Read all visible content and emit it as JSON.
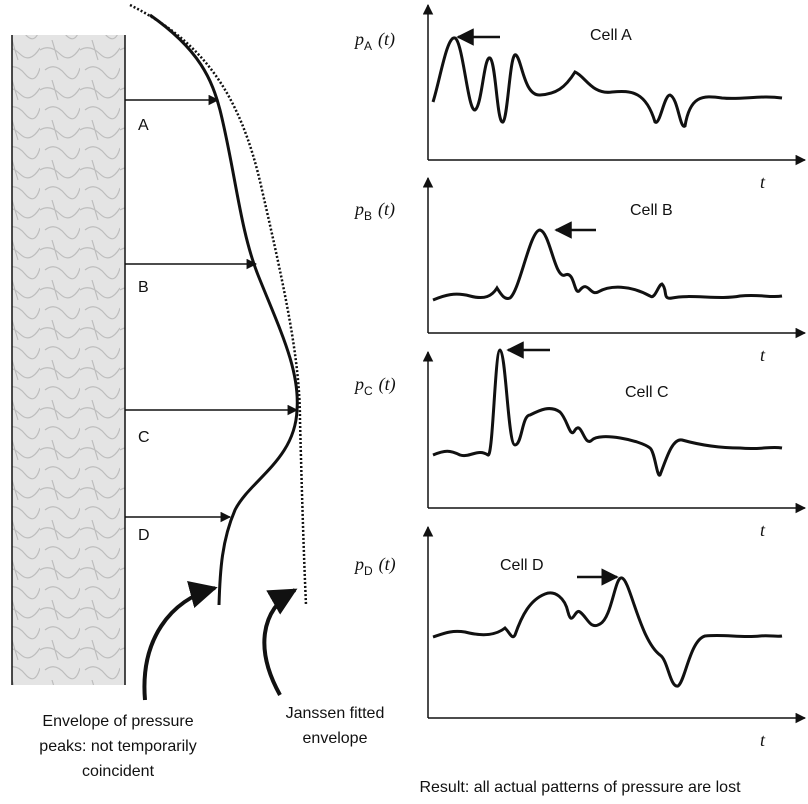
{
  "wall_cells": [
    "A",
    "B",
    "C",
    "D"
  ],
  "plots": [
    {
      "y_label": "p",
      "subscript": "A",
      "arg": "(t)",
      "title": "Cell  A",
      "x_label": "t"
    },
    {
      "y_label": "p",
      "subscript": "B",
      "arg": "(t)",
      "title": "Cell B",
      "x_label": "t"
    },
    {
      "y_label": "p",
      "subscript": "C",
      "arg": "(t)",
      "title": "Cell C",
      "x_label": "t"
    },
    {
      "y_label": "p",
      "subscript": "D",
      "arg": "(t)",
      "title": "Cell D",
      "x_label": "t"
    }
  ],
  "captions": {
    "envelope": [
      "Envelope of pressure",
      "peaks: not temporarily",
      "coincident"
    ],
    "janssen": [
      "Janssen fitted",
      "envelope"
    ],
    "result": "Result: all actual patterns of pressure are lost"
  }
}
